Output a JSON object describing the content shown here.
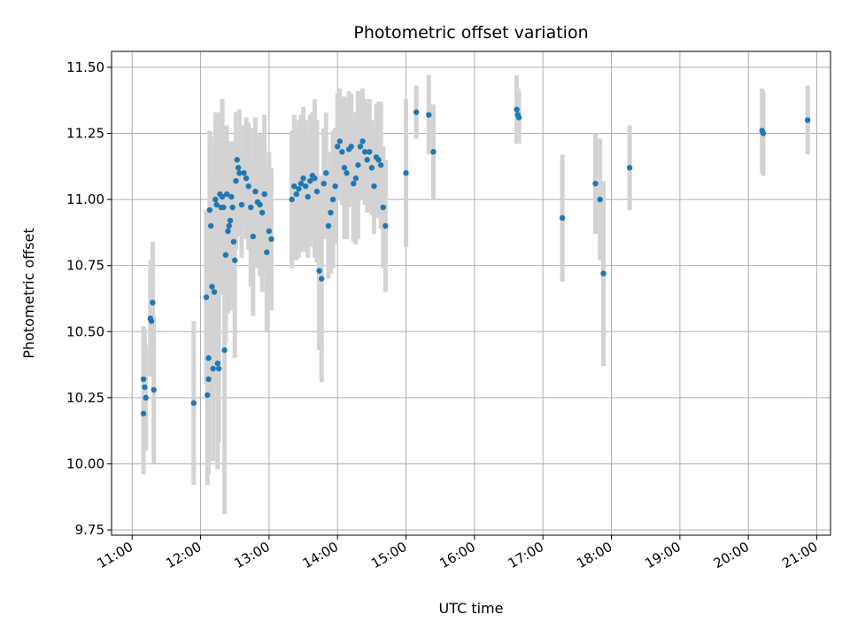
{
  "chart_data": {
    "type": "scatter",
    "title": "Photometric offset variation",
    "xlabel": "UTC time",
    "ylabel": "Photometric offset",
    "xlim": [
      "10:42",
      "21:12"
    ],
    "ylim": [
      9.73,
      11.56
    ],
    "grid": true,
    "legend": "none",
    "x_tick_labels": [
      "11:00",
      "12:00",
      "13:00",
      "14:00",
      "15:00",
      "16:00",
      "17:00",
      "18:00",
      "19:00",
      "20:00",
      "21:00"
    ],
    "y_tick_labels": [
      "9.75",
      "10.00",
      "10.25",
      "10.50",
      "10.75",
      "11.00",
      "11.25",
      "11.50"
    ],
    "colors": {
      "point": "#1f77b4",
      "errorbar": "#d3d3d3",
      "grid": "#b0b0b0"
    },
    "series": [
      {
        "x": [
          "11:10",
          "11:10",
          "11:11",
          "11:12",
          "11:16",
          "11:17",
          "11:18",
          "11:19",
          "11:54",
          "12:05",
          "12:06",
          "12:07",
          "12:07",
          "12:08",
          "12:09",
          "12:10",
          "12:11",
          "12:12",
          "12:13",
          "12:14",
          "12:15",
          "12:16",
          "12:17",
          "12:18",
          "12:19",
          "12:20",
          "12:21",
          "12:22",
          "12:23",
          "12:24",
          "12:25",
          "12:26",
          "12:27",
          "12:28",
          "12:29",
          "12:30",
          "12:31",
          "12:32",
          "12:33",
          "12:34",
          "12:36",
          "12:38",
          "12:40",
          "12:42",
          "12:44",
          "12:46",
          "12:48",
          "12:50",
          "12:52",
          "12:54",
          "12:56",
          "12:58",
          "13:00",
          "13:02",
          "13:20",
          "13:22",
          "13:24",
          "13:26",
          "13:28",
          "13:30",
          "13:32",
          "13:34",
          "13:36",
          "13:38",
          "13:40",
          "13:42",
          "13:44",
          "13:46",
          "13:48",
          "13:50",
          "13:52",
          "13:54",
          "13:56",
          "13:58",
          "14:00",
          "14:02",
          "14:04",
          "14:06",
          "14:08",
          "14:10",
          "14:12",
          "14:14",
          "14:16",
          "14:18",
          "14:20",
          "14:22",
          "14:24",
          "14:26",
          "14:28",
          "14:30",
          "14:32",
          "14:34",
          "14:36",
          "14:38",
          "14:40",
          "14:42",
          "15:00",
          "15:09",
          "15:20",
          "15:24",
          "16:37",
          "16:38",
          "16:39",
          "17:17",
          "17:46",
          "17:50",
          "17:53",
          "18:16",
          "20:12",
          "20:13",
          "20:52"
        ],
        "y": [
          10.19,
          10.32,
          10.29,
          10.25,
          10.55,
          10.54,
          10.61,
          10.28,
          10.23,
          10.63,
          10.26,
          10.4,
          10.32,
          10.96,
          10.9,
          10.67,
          10.36,
          10.65,
          11.0,
          10.98,
          10.38,
          10.36,
          11.02,
          10.97,
          11.01,
          10.97,
          10.43,
          10.79,
          11.02,
          10.88,
          10.9,
          10.92,
          11.01,
          10.97,
          10.84,
          10.77,
          11.07,
          11.15,
          11.12,
          11.1,
          10.98,
          11.1,
          11.08,
          11.05,
          10.97,
          10.86,
          11.03,
          10.99,
          10.98,
          10.95,
          11.02,
          10.8,
          10.88,
          10.85,
          11.0,
          11.05,
          11.02,
          11.04,
          11.06,
          11.08,
          11.05,
          11.01,
          11.07,
          11.09,
          11.08,
          11.03,
          10.73,
          10.7,
          11.06,
          11.1,
          10.9,
          10.95,
          11.0,
          11.05,
          11.2,
          11.22,
          11.18,
          11.12,
          11.1,
          11.19,
          11.2,
          11.06,
          11.08,
          11.13,
          11.2,
          11.22,
          11.18,
          11.15,
          11.18,
          11.12,
          11.05,
          11.16,
          11.15,
          11.13,
          10.97,
          10.9,
          11.1,
          11.33,
          11.32,
          11.18,
          11.34,
          11.32,
          11.31,
          10.93,
          11.06,
          11.0,
          10.72,
          11.12,
          11.26,
          11.25,
          11.3
        ],
        "yerr": [
          0.23,
          0.2,
          0.22,
          0.2,
          0.22,
          0.2,
          0.23,
          0.28,
          0.31,
          0.33,
          0.34,
          0.38,
          0.36,
          0.3,
          0.34,
          0.42,
          0.35,
          0.36,
          0.33,
          0.28,
          0.4,
          0.28,
          0.31,
          0.33,
          0.37,
          0.31,
          0.62,
          0.33,
          0.26,
          0.31,
          0.32,
          0.3,
          0.2,
          0.25,
          0.26,
          0.37,
          0.26,
          0.18,
          0.2,
          0.24,
          0.2,
          0.18,
          0.23,
          0.24,
          0.3,
          0.3,
          0.28,
          0.25,
          0.27,
          0.3,
          0.3,
          0.3,
          0.3,
          0.27,
          0.26,
          0.27,
          0.25,
          0.26,
          0.26,
          0.27,
          0.25,
          0.23,
          0.25,
          0.24,
          0.3,
          0.27,
          0.3,
          0.39,
          0.21,
          0.23,
          0.2,
          0.23,
          0.26,
          0.22,
          0.2,
          0.2,
          0.2,
          0.27,
          0.25,
          0.22,
          0.2,
          0.22,
          0.25,
          0.28,
          0.2,
          0.2,
          0.2,
          0.2,
          0.2,
          0.18,
          0.18,
          0.2,
          0.22,
          0.24,
          0.23,
          0.25,
          0.28,
          0.1,
          0.15,
          0.18,
          0.13,
          0.1,
          0.1,
          0.24,
          0.19,
          0.23,
          0.35,
          0.16,
          0.16,
          0.16,
          0.13
        ]
      }
    ]
  }
}
